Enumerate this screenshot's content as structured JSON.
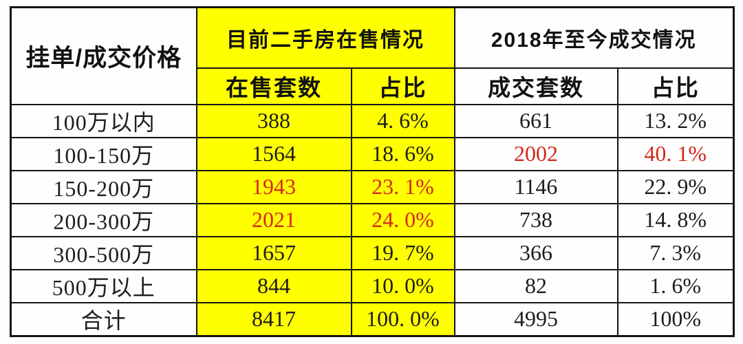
{
  "colors": {
    "highlight_yellow": "#ffff00",
    "accent_red": "#d5281c",
    "border_black": "#141414",
    "page_background": "#fefefe"
  },
  "table": {
    "corner_header": "挂单/成交价格",
    "groups": [
      {
        "label": "目前二手房在售情况",
        "highlighted": true
      },
      {
        "label": "2018年至今成交情况",
        "highlighted": false
      }
    ],
    "sub_headers": {
      "listed_count": "在售套数",
      "listed_share": "占比",
      "sold_count": "成交套数",
      "sold_share": "占比"
    },
    "rows": [
      {
        "label": "100万以内",
        "listed_count": "388",
        "listed_share": "4. 6%",
        "sold_count": "661",
        "sold_share": "13. 2%",
        "red_cells": []
      },
      {
        "label": "100-150万",
        "listed_count": "1564",
        "listed_share": "18. 6%",
        "sold_count": "2002",
        "sold_share": "40. 1%",
        "red_cells": [
          "sold_count",
          "sold_share"
        ]
      },
      {
        "label": "150-200万",
        "listed_count": "1943",
        "listed_share": "23. 1%",
        "sold_count": "1146",
        "sold_share": "22. 9%",
        "red_cells": [
          "listed_count",
          "listed_share"
        ]
      },
      {
        "label": "200-300万",
        "listed_count": "2021",
        "listed_share": "24. 0%",
        "sold_count": "738",
        "sold_share": "14. 8%",
        "red_cells": [
          "listed_count",
          "listed_share"
        ]
      },
      {
        "label": "300-500万",
        "listed_count": "1657",
        "listed_share": "19. 7%",
        "sold_count": "366",
        "sold_share": "7. 3%",
        "red_cells": []
      },
      {
        "label": "500万以上",
        "listed_count": "844",
        "listed_share": "10. 0%",
        "sold_count": "82",
        "sold_share": "1. 6%",
        "red_cells": []
      },
      {
        "label": "合计",
        "listed_count": "8417",
        "listed_share": "100. 0%",
        "sold_count": "4995",
        "sold_share": "100%",
        "red_cells": []
      }
    ]
  },
  "chart_data": {
    "type": "table",
    "title": "",
    "column_groups": [
      "挂单/成交价格",
      "目前二手房在售情况",
      "2018年至今成交情况"
    ],
    "columns": [
      "挂单/成交价格",
      "在售套数",
      "在售占比",
      "成交套数",
      "成交占比"
    ],
    "rows": [
      [
        "100万以内",
        388,
        "4.6%",
        661,
        "13.2%"
      ],
      [
        "100-150万",
        1564,
        "18.6%",
        2002,
        "40.1%"
      ],
      [
        "150-200万",
        1943,
        "23.1%",
        1146,
        "22.9%"
      ],
      [
        "200-300万",
        2021,
        "24.0%",
        738,
        "14.8%"
      ],
      [
        "300-500万",
        1657,
        "19.7%",
        366,
        "7.3%"
      ],
      [
        "500万以上",
        844,
        "10.0%",
        82,
        "1.6%"
      ],
      [
        "合计",
        8417,
        "100.0%",
        4995,
        "100%"
      ]
    ],
    "red_emphasis_cells": [
      {
        "row": "100-150万",
        "columns": [
          "成交套数",
          "成交占比"
        ]
      },
      {
        "row": "150-200万",
        "columns": [
          "在售套数",
          "在售占比"
        ]
      },
      {
        "row": "200-300万",
        "columns": [
          "在售套数",
          "在售占比"
        ]
      }
    ],
    "yellow_highlight_columns": [
      "在售套数",
      "在售占比"
    ],
    "layout_hints": {
      "grid": "full black borders",
      "header_font": "bold sans",
      "body_font": "serif"
    }
  }
}
